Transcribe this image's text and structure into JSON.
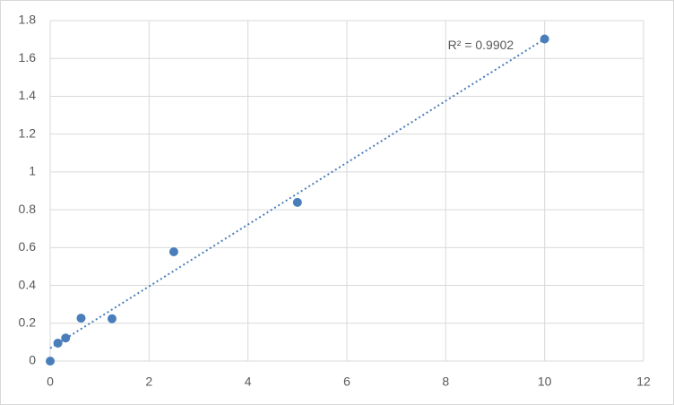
{
  "chart_data": {
    "type": "scatter",
    "series": [
      {
        "color": "#4a7ebb",
        "x": [
          0,
          0.156,
          0.3125,
          0.625,
          1.25,
          2.5,
          5,
          10
        ],
        "values": [
          0,
          0.095,
          0.122,
          0.227,
          0.224,
          0.578,
          0.839,
          1.703
        ]
      }
    ],
    "trendline": {
      "kind": "linear",
      "color": "#4a7ebb",
      "label": "R² = 0.9902"
    },
    "xlim": [
      0,
      12
    ],
    "xticks": [
      0,
      2,
      4,
      6,
      8,
      10,
      12
    ],
    "ylim": [
      0,
      1.8
    ],
    "yticks": [
      0,
      0.2,
      0.4,
      0.6,
      0.8,
      1,
      1.2,
      1.4,
      1.6,
      1.8
    ],
    "grid": true
  }
}
